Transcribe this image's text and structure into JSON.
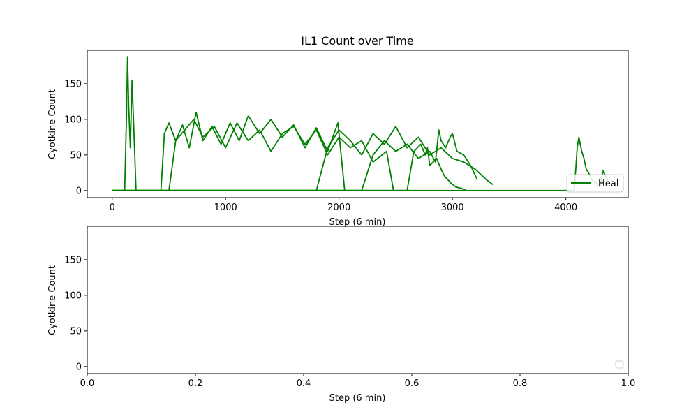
{
  "chart_data": [
    {
      "type": "line",
      "title": "IL1 Count over Time",
      "xlabel": "Step (6 min)",
      "ylabel": "Cyotkine Count",
      "xlim": [
        -220,
        4550
      ],
      "ylim": [
        -10,
        197
      ],
      "xticks": [
        0,
        1000,
        2000,
        3000,
        4000
      ],
      "xtick_labels": [
        "0",
        "1000",
        "2000",
        "3000",
        "4000"
      ],
      "yticks": [
        0,
        50,
        100,
        150
      ],
      "ytick_labels": [
        "0",
        "50",
        "100",
        "150"
      ],
      "line_color": "#008000",
      "legend": {
        "entries": [
          "Heal"
        ],
        "placement": "lower right"
      },
      "series": [
        {
          "name": "Heal",
          "x": [
            0,
            110,
            125,
            135,
            145,
            160,
            175,
            190,
            210,
            4075,
            4100,
            4115,
            4140,
            4160,
            4180,
            4200,
            4230,
            4270,
            4300,
            4330,
            4350,
            4380
          ],
          "y": [
            0,
            0,
            100,
            188,
            120,
            60,
            155,
            90,
            0,
            0,
            60,
            75,
            55,
            45,
            30,
            25,
            15,
            10,
            5,
            28,
            20,
            10
          ]
        },
        {
          "name": "Heal",
          "x": [
            0,
            430,
            460,
            500,
            560,
            620,
            680,
            740,
            800,
            880,
            960,
            1040,
            1120,
            1200,
            1300,
            1400,
            1500,
            1600,
            1700,
            1800,
            1900,
            1990,
            2050
          ],
          "y": [
            0,
            0,
            80,
            95,
            70,
            92,
            60,
            110,
            70,
            90,
            65,
            95,
            70,
            105,
            80,
            100,
            75,
            92,
            60,
            88,
            55,
            95,
            0
          ]
        },
        {
          "name": "Heal",
          "x": [
            0,
            500,
            560,
            640,
            720,
            800,
            900,
            1000,
            1100,
            1200,
            1300,
            1400,
            1500,
            1600,
            1700,
            1800,
            1900,
            2000,
            2100,
            2200,
            2300,
            2420,
            2480
          ],
          "y": [
            0,
            0,
            70,
            85,
            100,
            75,
            90,
            60,
            95,
            70,
            85,
            55,
            80,
            90,
            65,
            85,
            50,
            75,
            60,
            70,
            40,
            55,
            0
          ]
        },
        {
          "name": "Heal",
          "x": [
            0,
            1800,
            1900,
            2000,
            2100,
            2200,
            2300,
            2400,
            2500,
            2600,
            2700,
            2800,
            2900,
            3000,
            3100,
            3200,
            3300,
            3360
          ],
          "y": [
            0,
            0,
            60,
            85,
            70,
            50,
            80,
            65,
            90,
            60,
            75,
            50,
            60,
            45,
            40,
            30,
            15,
            8
          ]
        },
        {
          "name": "Heal",
          "x": [
            0,
            2200,
            2300,
            2400,
            2500,
            2600,
            2700,
            2800,
            2850,
            2880,
            2900,
            2940,
            2980,
            3000,
            3040,
            3100,
            3160,
            3220
          ],
          "y": [
            0,
            0,
            50,
            70,
            55,
            65,
            45,
            55,
            40,
            85,
            70,
            60,
            75,
            80,
            55,
            50,
            35,
            15
          ]
        },
        {
          "name": "Heal",
          "x": [
            0,
            2600,
            2660,
            2720,
            2760,
            2780,
            2800,
            2860,
            2900,
            2930,
            2960,
            2990,
            3030,
            3080,
            3120
          ],
          "y": [
            0,
            0,
            55,
            65,
            50,
            60,
            35,
            45,
            30,
            20,
            15,
            10,
            5,
            3,
            0
          ]
        }
      ]
    },
    {
      "type": "line",
      "title": "",
      "xlabel": "Step (6 min)",
      "ylabel": "Cyotkine Count",
      "xlim": [
        0,
        1
      ],
      "ylim": [
        -10,
        197
      ],
      "xticks": [
        0,
        0.2,
        0.4,
        0.6,
        0.8,
        1.0
      ],
      "xtick_labels": [
        "0.0",
        "0.2",
        "0.4",
        "0.6",
        "0.8",
        "1.0"
      ],
      "yticks": [
        0,
        50,
        100,
        150
      ],
      "ytick_labels": [
        "0",
        "50",
        "100",
        "150"
      ],
      "line_color": "#008000",
      "legend": {
        "entries": [
          ""
        ],
        "placement": "lower right"
      },
      "series": []
    }
  ]
}
